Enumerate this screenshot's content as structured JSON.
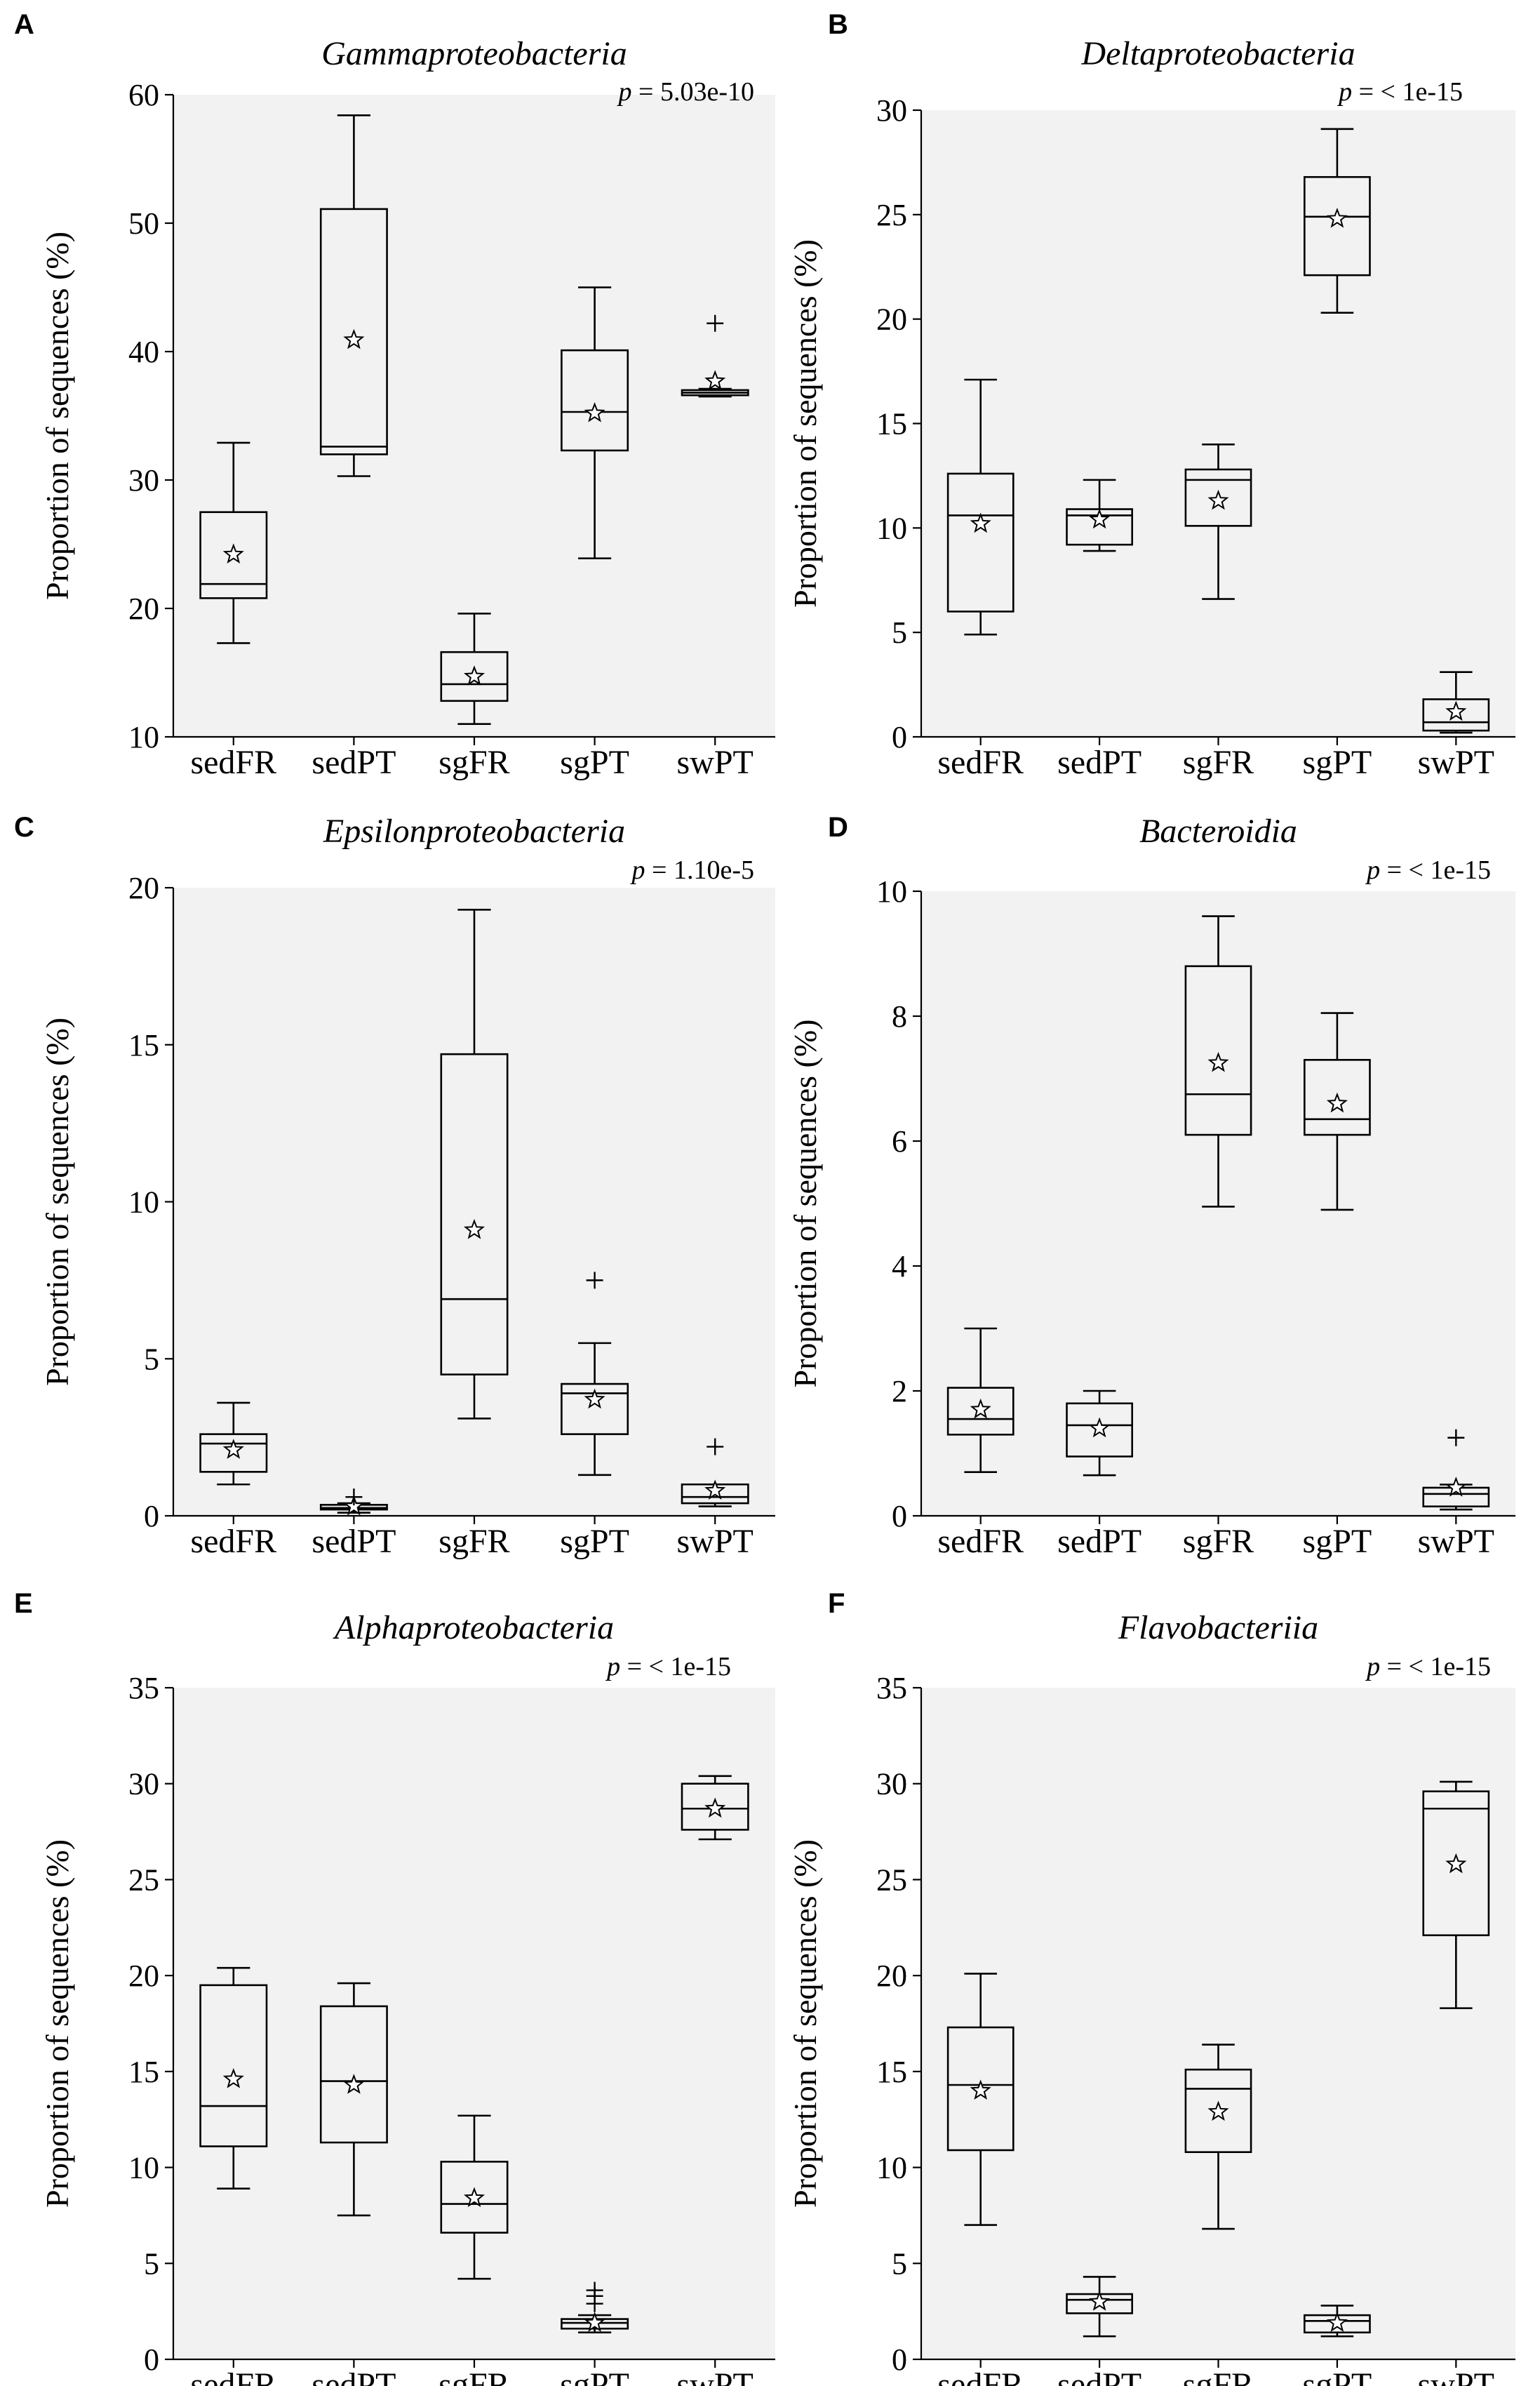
{
  "chart_data": [
    {
      "type": "box",
      "panel": "A",
      "title": "Gammaproteobacteria",
      "pvalue_prefix": "p",
      "pvalue_text": " = 5.03e-10",
      "xlabel": "",
      "ylabel": "Proportion of sequences (%)",
      "ylim": [
        10,
        60
      ],
      "yticks": [
        10,
        20,
        30,
        40,
        50,
        60
      ],
      "categories": [
        "sedFR",
        "sedPT",
        "sgFR",
        "sgPT",
        "swPT"
      ],
      "boxes": [
        {
          "whislo": 17.3,
          "q1": 20.8,
          "med": 21.9,
          "q3": 27.5,
          "whishi": 32.9,
          "mean": 24.2,
          "fliers": []
        },
        {
          "whislo": 30.3,
          "q1": 32.0,
          "med": 32.6,
          "q3": 51.1,
          "whishi": 58.4,
          "mean": 40.9,
          "fliers": []
        },
        {
          "whislo": 11.0,
          "q1": 12.8,
          "med": 14.1,
          "q3": 16.6,
          "whishi": 19.6,
          "mean": 14.7,
          "fliers": []
        },
        {
          "whislo": 23.9,
          "q1": 32.3,
          "med": 35.3,
          "q3": 40.1,
          "whishi": 45.0,
          "mean": 35.2,
          "fliers": []
        },
        {
          "whislo": 36.5,
          "q1": 36.6,
          "med": 36.8,
          "q3": 37.0,
          "whishi": 37.1,
          "mean": 37.7,
          "fliers": [
            42.2
          ]
        }
      ]
    },
    {
      "type": "box",
      "panel": "B",
      "title": "Deltaproteobacteria",
      "pvalue_prefix": "p",
      "pvalue_text": " = < 1e-15",
      "xlabel": "",
      "ylabel": "Proportion of sequences (%)",
      "ylim": [
        0,
        30
      ],
      "yticks": [
        0,
        5,
        10,
        15,
        20,
        25,
        30
      ],
      "categories": [
        "sedFR",
        "sedPT",
        "sgFR",
        "sgPT",
        "swPT"
      ],
      "boxes": [
        {
          "whislo": 4.9,
          "q1": 6.0,
          "med": 10.6,
          "q3": 12.6,
          "whishi": 17.1,
          "mean": 10.2,
          "fliers": []
        },
        {
          "whislo": 8.9,
          "q1": 9.2,
          "med": 10.6,
          "q3": 10.9,
          "whishi": 12.3,
          "mean": 10.4,
          "fliers": []
        },
        {
          "whislo": 6.6,
          "q1": 10.1,
          "med": 12.3,
          "q3": 12.8,
          "whishi": 14.0,
          "mean": 11.3,
          "fliers": []
        },
        {
          "whislo": 20.3,
          "q1": 22.1,
          "med": 24.9,
          "q3": 26.8,
          "whishi": 29.1,
          "mean": 24.8,
          "fliers": []
        },
        {
          "whislo": 0.2,
          "q1": 0.3,
          "med": 0.7,
          "q3": 1.8,
          "whishi": 3.1,
          "mean": 1.2,
          "fliers": []
        }
      ]
    },
    {
      "type": "box",
      "panel": "C",
      "title": "Epsilonproteobacteria",
      "pvalue_prefix": "p",
      "pvalue_text": " = 1.10e-5",
      "xlabel": "",
      "ylabel": "Proportion of sequences (%)",
      "ylim": [
        0,
        20
      ],
      "yticks": [
        0,
        5,
        10,
        15,
        20
      ],
      "categories": [
        "sedFR",
        "sedPT",
        "sgFR",
        "sgPT",
        "swPT"
      ],
      "boxes": [
        {
          "whislo": 1.0,
          "q1": 1.4,
          "med": 2.3,
          "q3": 2.6,
          "whishi": 3.6,
          "mean": 2.1,
          "fliers": []
        },
        {
          "whislo": 0.1,
          "q1": 0.2,
          "med": 0.25,
          "q3": 0.35,
          "whishi": 0.4,
          "mean": 0.3,
          "fliers": [
            0.6
          ]
        },
        {
          "whislo": 3.1,
          "q1": 4.5,
          "med": 6.9,
          "q3": 14.7,
          "whishi": 19.3,
          "mean": 9.1,
          "fliers": []
        },
        {
          "whislo": 1.3,
          "q1": 2.6,
          "med": 3.9,
          "q3": 4.2,
          "whishi": 5.5,
          "mean": 3.7,
          "fliers": [
            7.5
          ]
        },
        {
          "whislo": 0.3,
          "q1": 0.4,
          "med": 0.6,
          "q3": 1.0,
          "whishi": 1.0,
          "mean": 0.8,
          "fliers": [
            2.2
          ]
        }
      ]
    },
    {
      "type": "box",
      "panel": "D",
      "title": "Bacteroidia",
      "pvalue_prefix": "p",
      "pvalue_text": " = < 1e-15",
      "xlabel": "",
      "ylabel": "Proportion of sequences (%)",
      "ylim": [
        0,
        10
      ],
      "yticks": [
        0,
        2,
        4,
        6,
        8,
        10
      ],
      "categories": [
        "sedFR",
        "sedPT",
        "sgFR",
        "sgPT",
        "swPT"
      ],
      "boxes": [
        {
          "whislo": 0.7,
          "q1": 1.3,
          "med": 1.55,
          "q3": 2.05,
          "whishi": 3.0,
          "mean": 1.7,
          "fliers": []
        },
        {
          "whislo": 0.65,
          "q1": 0.95,
          "med": 1.45,
          "q3": 1.8,
          "whishi": 2.0,
          "mean": 1.4,
          "fliers": []
        },
        {
          "whislo": 4.95,
          "q1": 6.1,
          "med": 6.75,
          "q3": 8.8,
          "whishi": 9.6,
          "mean": 7.25,
          "fliers": []
        },
        {
          "whislo": 4.9,
          "q1": 6.1,
          "med": 6.35,
          "q3": 7.3,
          "whishi": 8.05,
          "mean": 6.6,
          "fliers": []
        },
        {
          "whislo": 0.1,
          "q1": 0.15,
          "med": 0.35,
          "q3": 0.45,
          "whishi": 0.5,
          "mean": 0.45,
          "fliers": [
            1.25
          ]
        }
      ]
    },
    {
      "type": "box",
      "panel": "E",
      "title": "Alphaproteobacteria",
      "pvalue_prefix": "p",
      "pvalue_text": " = < 1e-15",
      "xlabel": "",
      "ylabel": "Proportion of sequences (%)",
      "ylim": [
        0,
        35
      ],
      "yticks": [
        0,
        5,
        10,
        15,
        20,
        25,
        30,
        35
      ],
      "categories": [
        "sedFR",
        "sedPT",
        "sgFR",
        "sgPT",
        "swPT"
      ],
      "boxes": [
        {
          "whislo": 8.9,
          "q1": 11.1,
          "med": 13.2,
          "q3": 19.5,
          "whishi": 20.4,
          "mean": 14.6,
          "fliers": []
        },
        {
          "whislo": 7.5,
          "q1": 11.3,
          "med": 14.5,
          "q3": 18.4,
          "whishi": 19.6,
          "mean": 14.3,
          "fliers": []
        },
        {
          "whislo": 4.2,
          "q1": 6.6,
          "med": 8.1,
          "q3": 10.3,
          "whishi": 12.7,
          "mean": 8.4,
          "fliers": []
        },
        {
          "whislo": 1.4,
          "q1": 1.6,
          "med": 1.9,
          "q3": 2.1,
          "whishi": 2.3,
          "mean": 1.9,
          "fliers": [
            2.9,
            3.3,
            3.6
          ]
        },
        {
          "whislo": 27.1,
          "q1": 27.6,
          "med": 28.7,
          "q3": 30.0,
          "whishi": 30.4,
          "mean": 28.7,
          "fliers": []
        }
      ]
    },
    {
      "type": "box",
      "panel": "F",
      "title": "Flavobacteriia",
      "pvalue_prefix": "p",
      "pvalue_text": " = < 1e-15",
      "xlabel": "",
      "ylabel": "Proportion of sequences (%)",
      "ylim": [
        0,
        35
      ],
      "yticks": [
        0,
        5,
        10,
        15,
        20,
        25,
        30,
        35
      ],
      "categories": [
        "sedFR",
        "sedPT",
        "sgFR",
        "sgPT",
        "swPT"
      ],
      "boxes": [
        {
          "whislo": 7.0,
          "q1": 10.9,
          "med": 14.3,
          "q3": 17.3,
          "whishi": 20.1,
          "mean": 14.0,
          "fliers": []
        },
        {
          "whislo": 1.2,
          "q1": 2.4,
          "med": 3.1,
          "q3": 3.4,
          "whishi": 4.3,
          "mean": 3.0,
          "fliers": []
        },
        {
          "whislo": 6.8,
          "q1": 10.8,
          "med": 14.1,
          "q3": 15.1,
          "whishi": 16.4,
          "mean": 12.9,
          "fliers": []
        },
        {
          "whislo": 1.2,
          "q1": 1.4,
          "med": 2.0,
          "q3": 2.3,
          "whishi": 2.8,
          "mean": 1.9,
          "fliers": []
        },
        {
          "whislo": 18.3,
          "q1": 22.1,
          "med": 28.7,
          "q3": 29.6,
          "whishi": 30.1,
          "mean": 25.8,
          "fliers": []
        }
      ]
    }
  ]
}
